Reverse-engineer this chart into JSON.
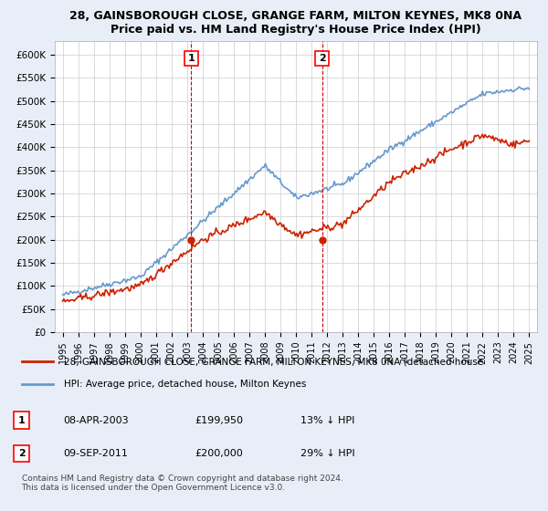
{
  "title1": "28, GAINSBOROUGH CLOSE, GRANGE FARM, MILTON KEYNES, MK8 0NA",
  "title2": "Price paid vs. HM Land Registry's House Price Index (HPI)",
  "yticks": [
    0,
    50000,
    100000,
    150000,
    200000,
    250000,
    300000,
    350000,
    400000,
    450000,
    500000,
    550000,
    600000
  ],
  "ytick_labels": [
    "£0",
    "£50K",
    "£100K",
    "£150K",
    "£200K",
    "£250K",
    "£300K",
    "£350K",
    "£400K",
    "£450K",
    "£500K",
    "£550K",
    "£600K"
  ],
  "xlim_start": 1994.5,
  "xlim_end": 2025.5,
  "ylim": [
    0,
    630000
  ],
  "background_color": "#e8eef7",
  "plot_bg_color": "#ffffff",
  "hpi_color": "#6699cc",
  "price_color": "#cc2200",
  "dashed_line_color": "#cc0000",
  "marker1_x": 2003.27,
  "marker1_y": 199950,
  "marker1_label": "1",
  "marker2_x": 2011.68,
  "marker2_y": 200000,
  "marker2_label": "2",
  "legend_line1": "28, GAINSBOROUGH CLOSE, GRANGE FARM, MILTON KEYNES, MK8 0NA (detached house",
  "legend_line2": "HPI: Average price, detached house, Milton Keynes",
  "table_row1_num": "1",
  "table_row1_date": "08-APR-2003",
  "table_row1_price": "£199,950",
  "table_row1_hpi": "13% ↓ HPI",
  "table_row2_num": "2",
  "table_row2_date": "09-SEP-2011",
  "table_row2_price": "£200,000",
  "table_row2_hpi": "29% ↓ HPI",
  "footnote": "Contains HM Land Registry data © Crown copyright and database right 2024.\nThis data is licensed under the Open Government Licence v3.0.",
  "xticks": [
    1995,
    1996,
    1997,
    1998,
    1999,
    2000,
    2001,
    2002,
    2003,
    2004,
    2005,
    2006,
    2007,
    2008,
    2009,
    2010,
    2011,
    2012,
    2013,
    2014,
    2015,
    2016,
    2017,
    2018,
    2019,
    2020,
    2021,
    2022,
    2023,
    2024,
    2025
  ]
}
